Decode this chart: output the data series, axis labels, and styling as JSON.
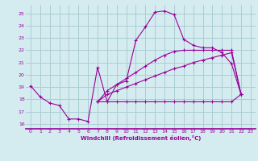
{
  "background_color": "#d4ecf0",
  "grid_color": "#aacdd4",
  "line_color": "#990099",
  "xlabel": "Windchill (Refroidissement éolien,°C)",
  "xlim": [
    -0.5,
    23.5
  ],
  "ylim": [
    15.6,
    25.7
  ],
  "yticks": [
    16,
    17,
    18,
    19,
    20,
    21,
    22,
    23,
    24,
    25
  ],
  "xticks": [
    0,
    1,
    2,
    3,
    4,
    5,
    6,
    7,
    8,
    9,
    10,
    11,
    12,
    13,
    14,
    15,
    16,
    17,
    18,
    19,
    20,
    21,
    22,
    23
  ],
  "series": [
    {
      "x": [
        0,
        1,
        2,
        3,
        4,
        5,
        6,
        7,
        8,
        9,
        10,
        11,
        12,
        13,
        14,
        15,
        16,
        17,
        18,
        19,
        20,
        21,
        22
      ],
      "y": [
        19.1,
        18.2,
        17.7,
        17.5,
        16.4,
        16.4,
        16.2,
        20.6,
        17.8,
        19.2,
        19.5,
        22.8,
        23.9,
        25.1,
        25.2,
        24.9,
        22.9,
        22.4,
        22.2,
        22.2,
        21.8,
        20.9,
        18.4
      ]
    },
    {
      "x": [
        7,
        8,
        9,
        10,
        11,
        12,
        13,
        14,
        15,
        16,
        17,
        18,
        19,
        20,
        21,
        22
      ],
      "y": [
        17.8,
        17.8,
        17.8,
        17.8,
        17.8,
        17.8,
        17.8,
        17.8,
        17.8,
        17.8,
        17.8,
        17.8,
        17.8,
        17.8,
        17.8,
        18.4
      ]
    },
    {
      "x": [
        7,
        8,
        9,
        10,
        11,
        12,
        13,
        14,
        15,
        16,
        17,
        18,
        19,
        20,
        21,
        22
      ],
      "y": [
        17.8,
        18.4,
        18.7,
        19.0,
        19.3,
        19.6,
        19.9,
        20.2,
        20.5,
        20.7,
        21.0,
        21.2,
        21.4,
        21.6,
        21.8,
        18.4
      ]
    },
    {
      "x": [
        7,
        8,
        9,
        10,
        11,
        12,
        13,
        14,
        15,
        16,
        17,
        18,
        19,
        20,
        21,
        22
      ],
      "y": [
        17.8,
        18.7,
        19.2,
        19.7,
        20.2,
        20.7,
        21.2,
        21.6,
        21.9,
        22.0,
        22.0,
        22.0,
        22.0,
        22.0,
        22.0,
        18.4
      ]
    }
  ]
}
